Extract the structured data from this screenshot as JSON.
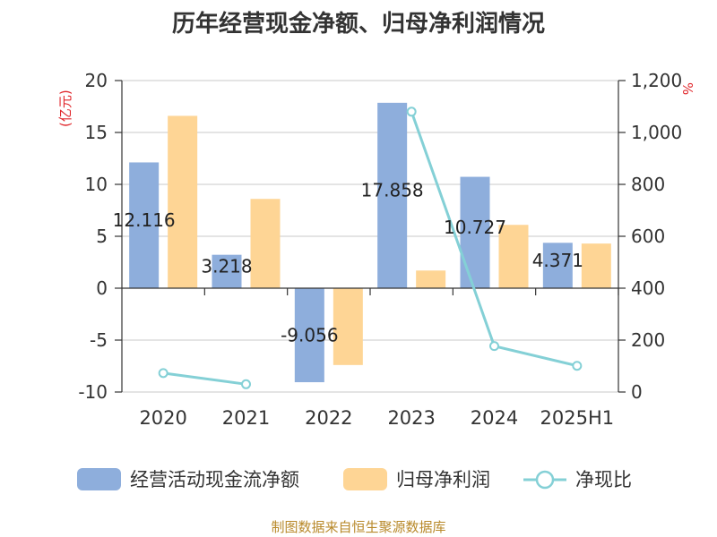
{
  "title": "历年经营现金净额、归母净利润情况",
  "footer": "制图数据来自恒生聚源数据库",
  "colors": {
    "cash": "#8eaedc",
    "profit": "#fed595",
    "ratio": "#84d0d6",
    "unit": "#e0262b",
    "footer": "#b8892a"
  },
  "chart_data": {
    "type": "bar",
    "categories": [
      "2020",
      "2021",
      "2022",
      "2023",
      "2024",
      "2025H1"
    ],
    "series": [
      {
        "name": "经营活动现金流净额",
        "type": "bar",
        "axis": "left",
        "values": [
          12.116,
          3.218,
          -9.056,
          17.858,
          10.727,
          4.371
        ],
        "labels": [
          "12.116",
          "3.218",
          "-9.056",
          "17.858",
          "10.727",
          "4.371"
        ]
      },
      {
        "name": "归母净利润",
        "type": "bar",
        "axis": "left",
        "values": [
          16.6,
          8.6,
          -7.4,
          1.7,
          6.1,
          4.3
        ]
      },
      {
        "name": "净现比",
        "type": "line",
        "axis": "right",
        "values": [
          73,
          30,
          null,
          1080,
          177,
          101
        ]
      }
    ],
    "y_left": {
      "unit": "(亿元)",
      "min": -10,
      "max": 20,
      "ticks": [
        20,
        15,
        10,
        5,
        0,
        -5,
        -10
      ]
    },
    "y_right": {
      "unit": "%",
      "min": 0,
      "max": 1200,
      "ticks": [
        0,
        200,
        400,
        600,
        800,
        1000,
        1200
      ],
      "tick_labels": [
        "0",
        "200",
        "400",
        "600",
        "800",
        "1,000",
        "1,200"
      ]
    },
    "grid": true,
    "legend_position": "bottom"
  }
}
